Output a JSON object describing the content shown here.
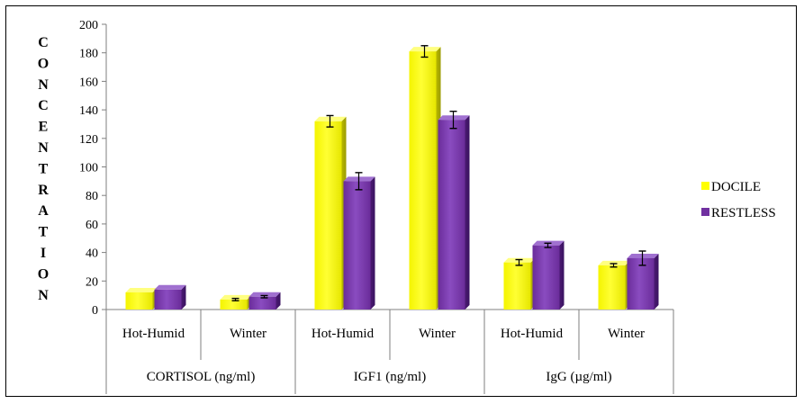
{
  "chart_data": {
    "type": "bar",
    "title": "",
    "ylabel": "CONCENTRATION",
    "ylim": [
      0,
      200
    ],
    "yticks": [
      0,
      20,
      40,
      60,
      80,
      100,
      120,
      140,
      160,
      180,
      200
    ],
    "categories": [
      "Hot-Humid",
      "Winter",
      "Hot-Humid",
      "Winter",
      "Hot-Humid",
      "Winter"
    ],
    "groups": [
      {
        "label": "CORTISOL (ng/ml)",
        "categories": [
          "Hot-Humid",
          "Winter"
        ]
      },
      {
        "label": "IGF1  (ng/ml)",
        "categories": [
          "Hot-Humid",
          "Winter"
        ]
      },
      {
        "label": "IgG (µg/ml)",
        "categories": [
          "Hot-Humid",
          "Winter"
        ]
      }
    ],
    "series": [
      {
        "name": "DOCILE",
        "color": "#ffff00",
        "values": [
          12,
          7,
          132,
          181,
          33,
          31
        ],
        "errors": [
          0,
          0.8,
          4,
          4,
          2,
          1.2
        ]
      },
      {
        "name": "RESTLESS",
        "color": "#7030a0",
        "values": [
          14,
          9,
          90,
          133,
          45,
          36
        ],
        "errors": [
          0,
          0.8,
          6,
          6,
          1.5,
          5
        ]
      }
    ],
    "grid": false,
    "legend": "right"
  }
}
